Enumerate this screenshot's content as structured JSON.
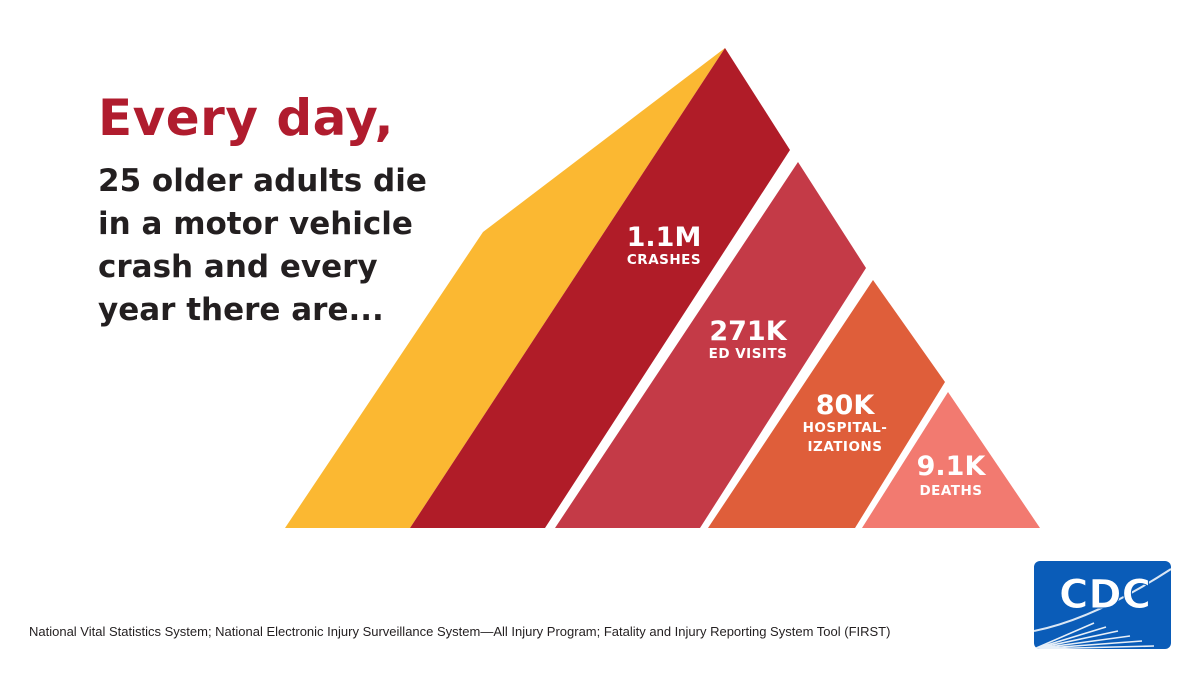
{
  "headline": "Every day,",
  "subline": "25 older adults die in a motor vehicle crash and every year there are...",
  "tiers": [
    {
      "value": "1.1M",
      "label": "CRASHES"
    },
    {
      "value": "271K",
      "label": "ED VISITS"
    },
    {
      "value": "80K",
      "label_line1": "HOSPITAL-",
      "label_line2": "IZATIONS"
    },
    {
      "value": "9.1K",
      "label": "DEATHS"
    }
  ],
  "footnote": "National Vital Statistics System; National Electronic Injury Surveillance System—All Injury Program; Fatality and Injury Reporting System Tool (FIRST)",
  "logo": {
    "text": "CDC",
    "icon": "cdc-logo-icon"
  },
  "colors": {
    "headline": "#b01c2e",
    "body_text": "#231f20",
    "yellow_side": "#fbb832",
    "crashes": "#b01c28",
    "ed_visits": "#c43a47",
    "hospitalizations": "#df5e3a",
    "deaths": "#f27a70",
    "logo_blue": "#0a5cb8"
  }
}
